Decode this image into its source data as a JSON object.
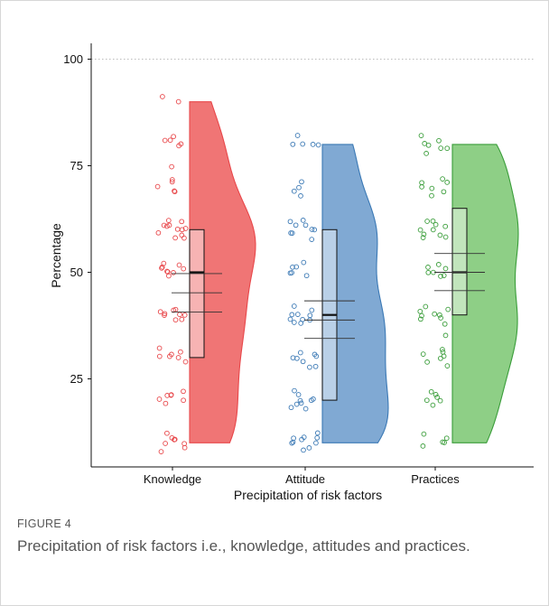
{
  "figure": {
    "label": "FIGURE 4",
    "caption": "Precipitation of risk factors i.e., knowledge, attitudes and practices."
  },
  "chart_data": {
    "type": "raincloud",
    "xlabel": "Precipitation of risk factors",
    "ylabel": "Percentage",
    "categories": [
      "Knowledge",
      "Attitude",
      "Practices"
    ],
    "ylim": [
      5,
      105
    ],
    "yticks": [
      25,
      50,
      75,
      100
    ],
    "reference_line": 100,
    "grid": false,
    "series": [
      {
        "category": "Knowledge",
        "color": "#e8474a",
        "fill": "#f07575",
        "box": {
          "min": 10,
          "q1": 30,
          "median": 50,
          "q3": 60,
          "max": 90
        },
        "mean_ci": [
          40.7,
          45.2,
          49.7
        ],
        "points": [
          91,
          90,
          82,
          81,
          81,
          80,
          80,
          75,
          72,
          71,
          70,
          69,
          69,
          62,
          62,
          61,
          61,
          61,
          60,
          60,
          60,
          59,
          59,
          58,
          58,
          52,
          52,
          51,
          51,
          51,
          50,
          50,
          50,
          49,
          41,
          41,
          41,
          40,
          40,
          40,
          40,
          39,
          39,
          32,
          31,
          31,
          30,
          30,
          30,
          29,
          22,
          21,
          21,
          21,
          20,
          20,
          19,
          12,
          11,
          11,
          11,
          10,
          10,
          9,
          8
        ]
      },
      {
        "category": "Attitude",
        "color": "#3b79b5",
        "fill": "#80a9d3",
        "box": {
          "min": 10,
          "q1": 20,
          "median": 40,
          "q3": 60,
          "max": 80
        },
        "mean_ci": [
          34.5,
          38.8,
          43.3
        ],
        "points": [
          82,
          80,
          80,
          80,
          80,
          71,
          70,
          69,
          68,
          62,
          62,
          61,
          61,
          60,
          60,
          59,
          59,
          58,
          52,
          51,
          51,
          50,
          50,
          49,
          42,
          41,
          40,
          40,
          40,
          39,
          39,
          39,
          38,
          38,
          31,
          31,
          30,
          30,
          30,
          29,
          28,
          28,
          22,
          21,
          20,
          20,
          20,
          19,
          19,
          18,
          18,
          12,
          11,
          11,
          11,
          11,
          10,
          10,
          10,
          9,
          8
        ]
      },
      {
        "category": "Practices",
        "color": "#3a9d3a",
        "fill": "#8ecf86",
        "box": {
          "min": 10,
          "q1": 40,
          "median": 50,
          "q3": 65,
          "max": 80
        },
        "mean_ci": [
          45.7,
          50.0,
          54.4
        ],
        "points": [
          82,
          81,
          80,
          80,
          79,
          79,
          78,
          72,
          71,
          71,
          70,
          70,
          69,
          68,
          62,
          62,
          61,
          61,
          60,
          60,
          59,
          59,
          58,
          58,
          52,
          51,
          51,
          50,
          50,
          49,
          49,
          42,
          41,
          41,
          40,
          40,
          40,
          39,
          39,
          38,
          35,
          32,
          31,
          31,
          30,
          30,
          29,
          28,
          22,
          21,
          21,
          20,
          20,
          19,
          12,
          11,
          10,
          10,
          9
        ]
      }
    ]
  }
}
